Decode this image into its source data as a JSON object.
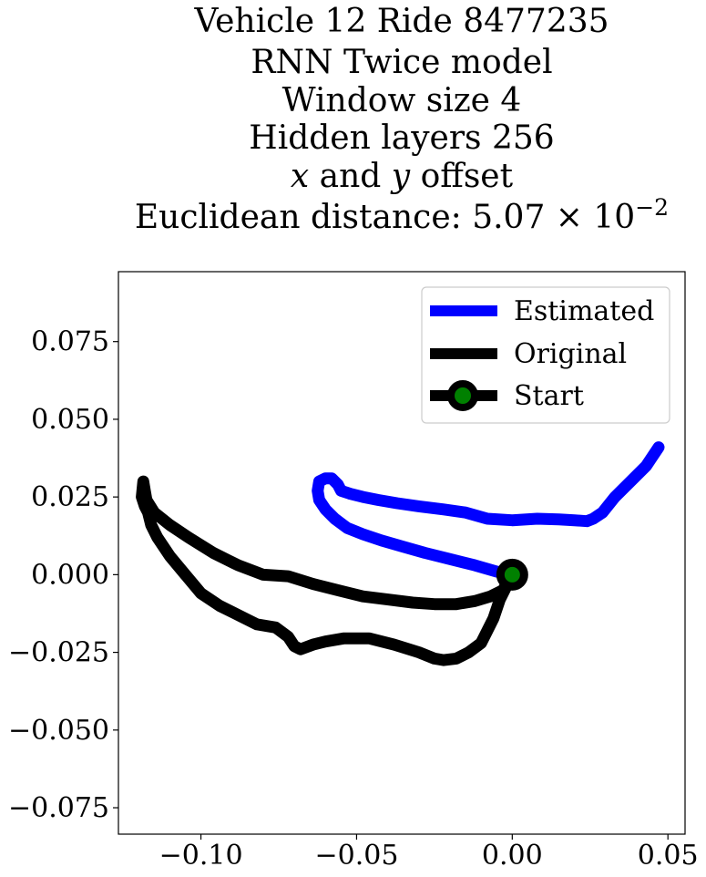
{
  "chart_data": {
    "type": "line",
    "title_lines": [
      "Vehicle 12 Ride 8477235",
      "RNN Twice model",
      "Window size 4",
      "Hidden layers 256",
      "x and y offset",
      "Euclidean distance: 5.07 × 10−2"
    ],
    "title_parts": {
      "offset_x": "x",
      "offset_and": " and ",
      "offset_y": "y",
      "offset_suffix": " offset",
      "dist_prefix": "Euclidean distance: 5.07 × 10",
      "dist_exp": "−2"
    },
    "xlabel": "",
    "ylabel": "",
    "xlim": [
      -0.1265,
      0.0555
    ],
    "ylim": [
      -0.0835,
      0.0975
    ],
    "xticks": [
      -0.1,
      -0.05,
      0.0,
      0.05
    ],
    "xtick_labels": [
      "−0.10",
      "−0.05",
      "0.00",
      "0.05"
    ],
    "yticks": [
      0.075,
      0.05,
      0.025,
      0.0,
      -0.025,
      -0.05,
      -0.075
    ],
    "ytick_labels": [
      "0.075",
      "0.050",
      "0.025",
      "0.000",
      "−0.025",
      "−0.050",
      "−0.075"
    ],
    "grid": false,
    "legend_position": "top-right",
    "series": [
      {
        "name": "Estimated",
        "color": "#0000ff",
        "x": [
          0.0,
          -0.005,
          -0.012,
          -0.02,
          -0.028,
          -0.035,
          -0.042,
          -0.048,
          -0.053,
          -0.057,
          -0.06,
          -0.062,
          -0.0625,
          -0.062,
          -0.06,
          -0.058,
          -0.056,
          -0.055,
          -0.052,
          -0.048,
          -0.043,
          -0.037,
          -0.03,
          -0.022,
          -0.015,
          -0.008,
          0.0,
          0.008,
          0.015,
          0.02,
          0.024,
          0.026,
          0.029,
          0.033,
          0.038,
          0.043,
          0.047
        ],
        "y": [
          0.0,
          0.001,
          0.003,
          0.005,
          0.007,
          0.009,
          0.011,
          0.013,
          0.015,
          0.018,
          0.021,
          0.024,
          0.027,
          0.03,
          0.031,
          0.031,
          0.029,
          0.027,
          0.026,
          0.025,
          0.024,
          0.023,
          0.022,
          0.021,
          0.02,
          0.018,
          0.0175,
          0.018,
          0.0178,
          0.0175,
          0.0172,
          0.018,
          0.02,
          0.025,
          0.03,
          0.035,
          0.041
        ]
      },
      {
        "name": "Original",
        "color": "#000000",
        "x": [
          0.0,
          -0.003,
          -0.007,
          -0.012,
          -0.018,
          -0.025,
          -0.032,
          -0.04,
          -0.048,
          -0.056,
          -0.064,
          -0.072,
          -0.08,
          -0.088,
          -0.096,
          -0.104,
          -0.11,
          -0.115,
          -0.1175,
          -0.118,
          -0.1185,
          -0.119,
          -0.118,
          -0.117,
          -0.116,
          -0.114,
          -0.11,
          -0.105,
          -0.1,
          -0.094,
          -0.088,
          -0.082,
          -0.076,
          -0.072,
          -0.07,
          -0.068,
          -0.064,
          -0.06,
          -0.054,
          -0.046,
          -0.038,
          -0.03,
          -0.025,
          -0.022,
          -0.018,
          -0.014,
          -0.01,
          -0.008,
          -0.006,
          -0.004,
          -0.002,
          0.0
        ],
        "y": [
          0.0,
          -0.005,
          -0.007,
          -0.0085,
          -0.0095,
          -0.0095,
          -0.009,
          -0.008,
          -0.007,
          -0.005,
          -0.003,
          -0.0005,
          0.0,
          0.003,
          0.007,
          0.012,
          0.016,
          0.02,
          0.024,
          0.027,
          0.03,
          0.025,
          0.022,
          0.02,
          0.016,
          0.012,
          0.006,
          0.0,
          -0.006,
          -0.01,
          -0.013,
          -0.016,
          -0.017,
          -0.02,
          -0.023,
          -0.024,
          -0.0225,
          -0.0215,
          -0.0205,
          -0.0205,
          -0.0225,
          -0.025,
          -0.027,
          -0.0275,
          -0.027,
          -0.025,
          -0.022,
          -0.018,
          -0.014,
          -0.008,
          -0.004,
          0.0
        ]
      }
    ],
    "start_marker": {
      "name": "Start",
      "x": 0.0,
      "y": 0.0,
      "fill": "#008000",
      "edge": "#000000"
    }
  }
}
